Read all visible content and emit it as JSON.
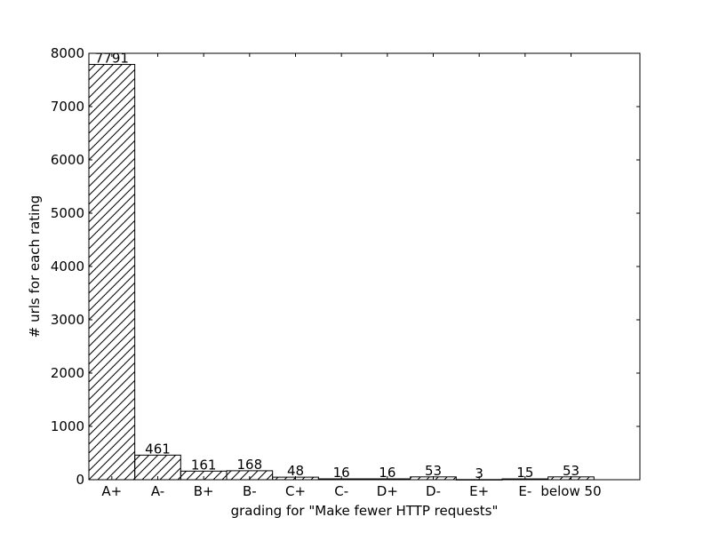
{
  "chart_data": {
    "type": "bar",
    "categories": [
      "A+",
      "A-",
      "B+",
      "B-",
      "C+",
      "C-",
      "D+",
      "D-",
      "E+",
      "E-",
      "below 50"
    ],
    "values": [
      7791,
      461,
      161,
      168,
      48,
      16,
      16,
      53,
      3,
      15,
      53
    ],
    "data_labels": [
      "7791",
      "461",
      "161",
      "168",
      "48",
      "16",
      "16",
      "53",
      "3",
      "15",
      "53"
    ],
    "xlabel": "grading for \"Make fewer HTTP requests\"",
    "ylabel": "# urls for each rating",
    "ylim": [
      0,
      8000
    ],
    "yticks": [
      "0",
      "1000",
      "2000",
      "3000",
      "4000",
      "5000",
      "6000",
      "7000",
      "8000"
    ],
    "bar_fill": "#ffffff",
    "bar_hatch": "diagonal",
    "bar_edge": "#000000",
    "grid": false,
    "legend": "none"
  }
}
